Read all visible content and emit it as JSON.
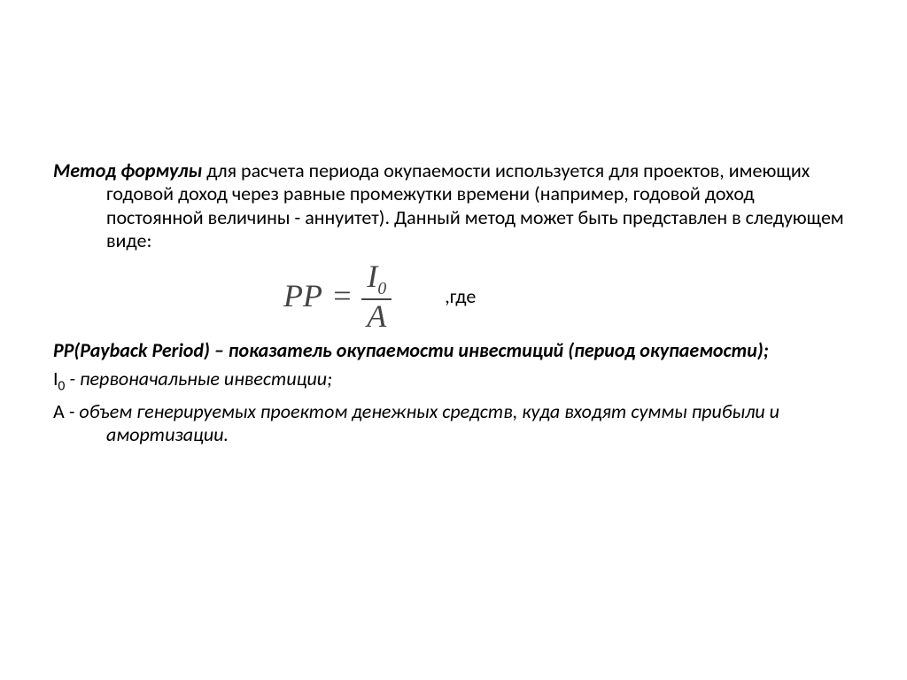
{
  "title_bold": "Метод формулы",
  "title_rest": " для расчета периода окупаемости используется для проектов, имеющих годовой доход через равные промежутки времени (например, годовой доход постоянной величины - аннуитет). Данный метод может быть представлен в следующем виде:",
  "formula": {
    "lhs": "PP",
    "eq": "=",
    "num_main": "I",
    "num_sub": "0",
    "den": "A",
    "where_label": ",где"
  },
  "def_pp_term": "PP(Payback  Period)",
  "def_pp_sep": " – ",
  "def_pp_rest": "показатель окупаемости инвестиций (период окупаемости);",
  "def_i0_sym": "I",
  "def_i0_sub": "0",
  "def_i0_sep": " - ",
  "def_i0_rest": "первоначальные  инвестиции;",
  "def_a_sym": "А",
  "def_a_sep": " - ",
  "def_a_rest": "объем генерируемых проектом денежных средств, куда входят суммы прибыли и амортизации.",
  "colors": {
    "text": "#000000",
    "formula": "#444444",
    "background": "#ffffff"
  },
  "fontsizes": {
    "body": 22,
    "formula": 36
  }
}
